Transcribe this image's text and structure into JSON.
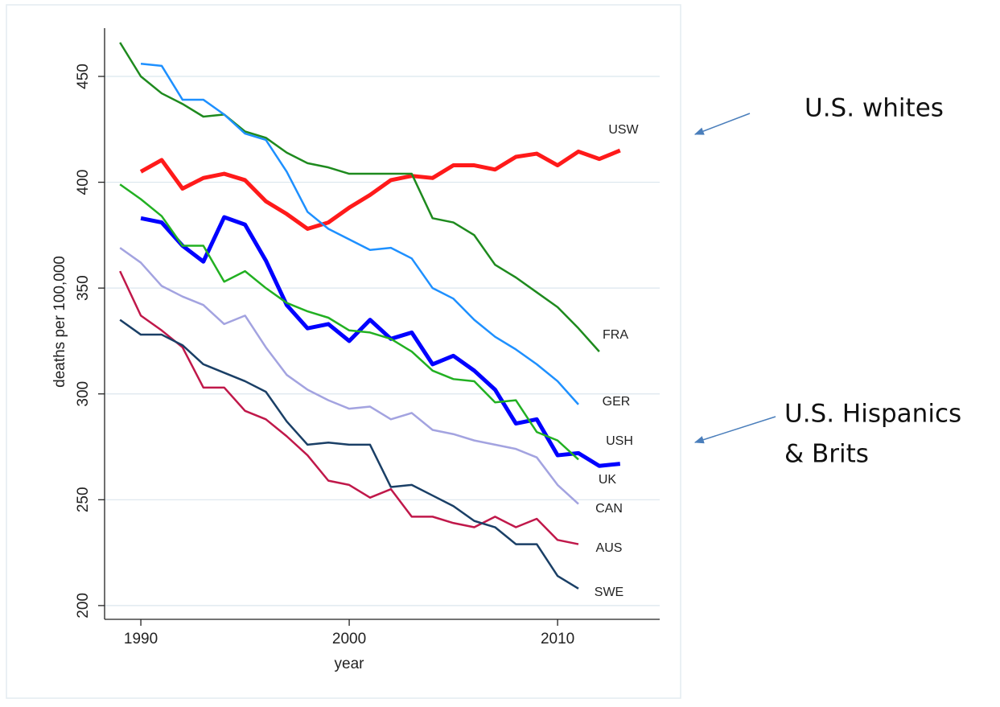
{
  "chart_data": {
    "type": "line",
    "xlabel": "year",
    "ylabel": "deaths per 100,000",
    "x": [
      1989,
      1990,
      1991,
      1992,
      1993,
      1994,
      1995,
      1996,
      1997,
      1998,
      1999,
      2000,
      2001,
      2002,
      2003,
      2004,
      2005,
      2006,
      2007,
      2008,
      2009,
      2010,
      2011,
      2012,
      2013
    ],
    "xlim": [
      1988.26,
      2014.9
    ],
    "xticks": [
      1990,
      2000,
      2010
    ],
    "ylim": [
      193.5,
      472.8
    ],
    "yticks": [
      200,
      250,
      300,
      350,
      400,
      450
    ],
    "grid": true,
    "series": [
      {
        "name": "USW",
        "color": "#ff1a1a",
        "values": [
          null,
          405,
          410.5,
          397,
          402,
          404,
          401,
          391,
          385,
          378,
          381,
          388,
          394,
          401,
          403,
          402,
          408,
          408,
          406,
          412,
          413.5,
          408,
          414.5,
          411,
          415
        ]
      },
      {
        "name": "FRA",
        "color": "#1e8a1e",
        "values": [
          466,
          450,
          442,
          437,
          431,
          432,
          424,
          421,
          414,
          409,
          407,
          404,
          404,
          404,
          404,
          383,
          381,
          375,
          361,
          355,
          348,
          341,
          331,
          320,
          null
        ]
      },
      {
        "name": "GER",
        "color": "#1e90ff",
        "values": [
          null,
          456,
          455,
          439,
          439,
          432,
          423,
          420,
          405,
          386,
          378,
          373,
          368,
          369,
          364,
          350,
          345,
          335,
          327,
          321,
          314,
          306,
          295,
          null,
          null
        ]
      },
      {
        "name": "USH",
        "color": "#0000ff",
        "values": [
          null,
          383,
          381,
          370,
          362.5,
          383.5,
          380,
          363,
          342,
          331,
          333,
          325,
          335,
          326,
          329,
          314,
          318,
          311,
          302,
          286,
          288,
          271,
          272,
          266,
          267
        ]
      },
      {
        "name": "UK",
        "color": "#22b022",
        "values": [
          399,
          392,
          384,
          370,
          370,
          353,
          358,
          350,
          343,
          339,
          336,
          330,
          329,
          326,
          320,
          311,
          307,
          306,
          296,
          297,
          282,
          278,
          269,
          null,
          null
        ]
      },
      {
        "name": "CAN",
        "color": "#a3a3e0",
        "values": [
          369,
          362,
          351,
          346,
          342,
          333,
          337,
          322,
          309,
          302,
          297,
          293,
          294,
          288,
          291,
          283,
          281,
          278,
          276,
          274,
          270,
          257,
          248,
          null,
          null
        ]
      },
      {
        "name": "AUS",
        "color": "#c0184a",
        "values": [
          358,
          337,
          330,
          322,
          303,
          303,
          292,
          288,
          280,
          271,
          259,
          257,
          251,
          255,
          242,
          242,
          239,
          237,
          242,
          237,
          241,
          231,
          229,
          null,
          null
        ]
      },
      {
        "name": "SWE",
        "color": "#1a3f66",
        "values": [
          335,
          328,
          328,
          323,
          314,
          310,
          306,
          301,
          287,
          276,
          277,
          276,
          276,
          256,
          257,
          252,
          247,
          240,
          237,
          229,
          229,
          214,
          208,
          null,
          null
        ]
      }
    ],
    "annotations": [
      "U.S. whites",
      "U.S. Hispanics",
      "& Brits"
    ]
  }
}
